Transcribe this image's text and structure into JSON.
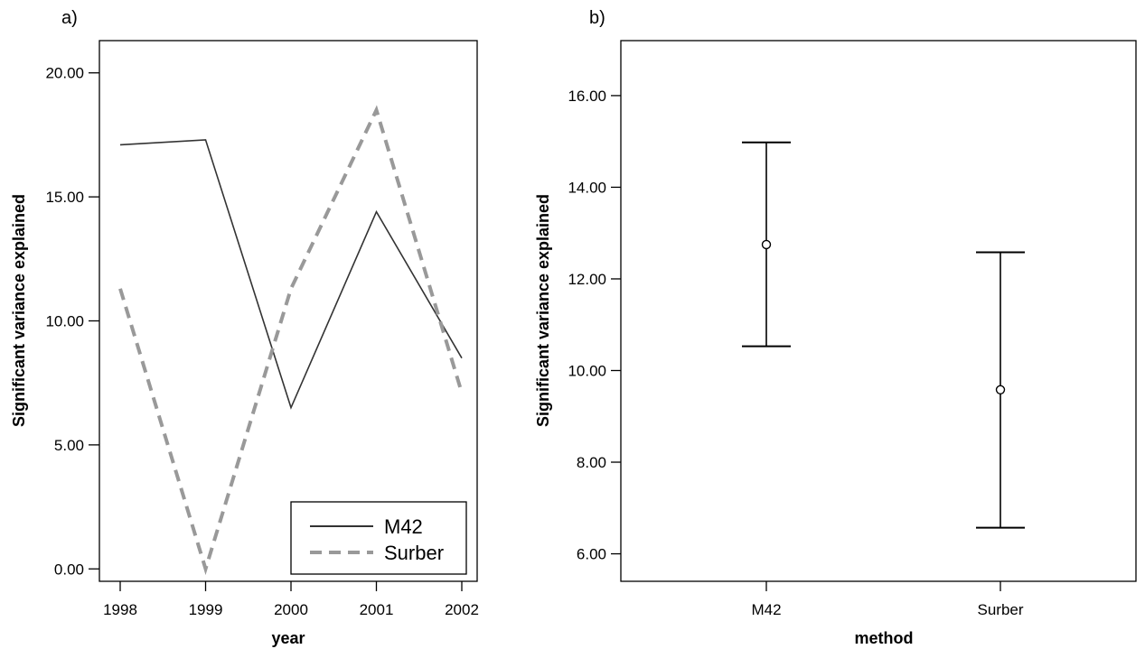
{
  "chart_data": [
    {
      "type": "line",
      "panel_label": "a)",
      "xlabel": "year",
      "ylabel": "Significant variance explained",
      "categories": [
        "1998",
        "1999",
        "2000",
        "2001",
        "2002"
      ],
      "yticks": [
        "0.00",
        "5.00",
        "10.00",
        "15.00",
        "20.00"
      ],
      "ylim": [
        -0.5,
        21.3
      ],
      "series": [
        {
          "name": "M42",
          "values": [
            17.1,
            17.3,
            6.5,
            14.4,
            8.5
          ],
          "color": "#333333",
          "style": "solid"
        },
        {
          "name": "Surber",
          "values": [
            11.3,
            0.0,
            11.3,
            18.5,
            7.1
          ],
          "color": "#999999",
          "style": "dashed"
        }
      ],
      "legend": "bottom-right",
      "grid": false
    },
    {
      "type": "errorbar",
      "panel_label": "b)",
      "xlabel": "method",
      "ylabel": "Significant variance explained",
      "categories": [
        "M42",
        "Surber"
      ],
      "yticks": [
        "6.00",
        "8.00",
        "10.00",
        "12.00",
        "14.00",
        "16.00"
      ],
      "ylim": [
        5.4,
        17.2
      ],
      "means": [
        12.75,
        9.58
      ],
      "lower": [
        10.53,
        6.57
      ],
      "upper": [
        14.98,
        12.58
      ],
      "grid": false
    }
  ]
}
